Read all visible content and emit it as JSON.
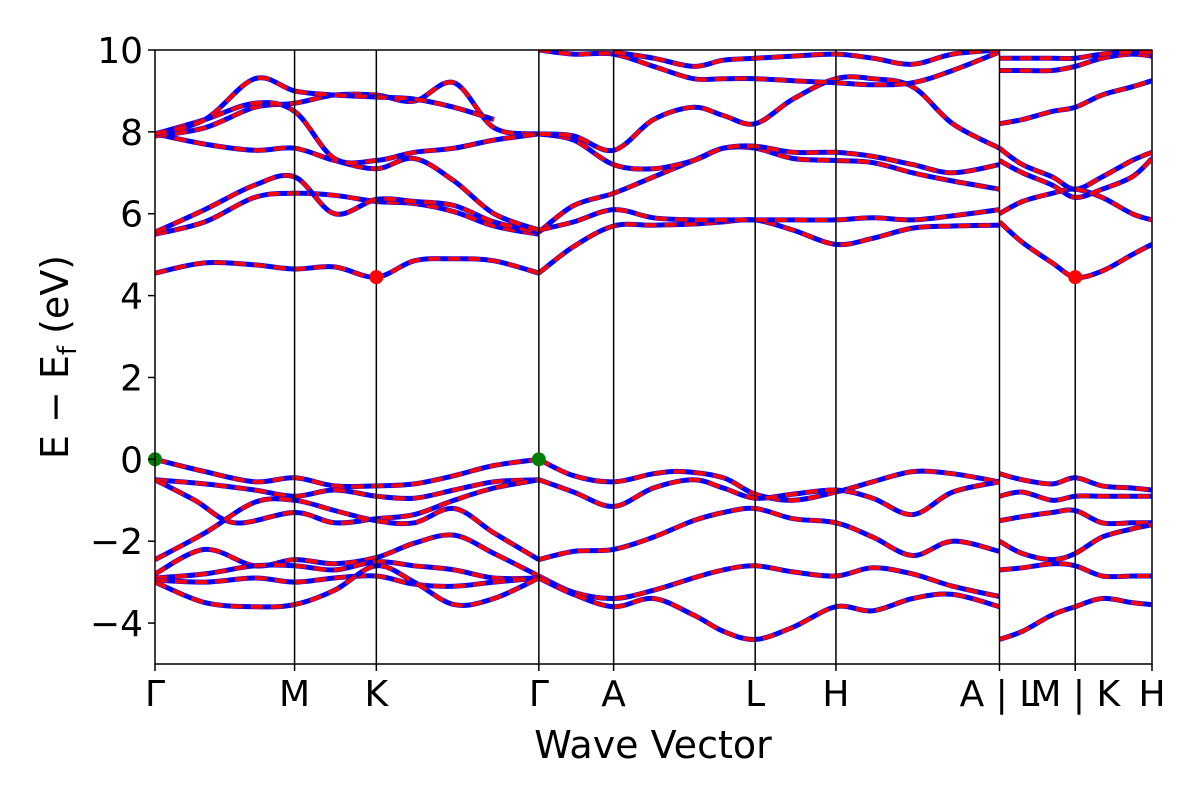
{
  "chart_data": {
    "type": "line",
    "title": "",
    "xlabel": "Wave Vector",
    "ylabel": "E − E",
    "ylabel_sub": "f",
    "ylabel_unit": " (eV)",
    "ylim": [
      -5,
      10
    ],
    "yticks": [
      -4,
      -2,
      0,
      2,
      4,
      6,
      8,
      10
    ],
    "ytick_labels": [
      "−4",
      "−2",
      "0",
      "2",
      "4",
      "6",
      "8",
      "10"
    ],
    "xlim": [
      0,
      1
    ],
    "grid": false,
    "legend": "none",
    "kpoints": [
      {
        "label": "Γ",
        "x": 0.0
      },
      {
        "label": "M",
        "x": 0.14
      },
      {
        "label": "K",
        "x": 0.222
      },
      {
        "label": "Γ",
        "x": 0.385
      },
      {
        "label": "A",
        "x": 0.46
      },
      {
        "label": "L",
        "x": 0.602
      },
      {
        "label": "H",
        "x": 0.683
      },
      {
        "label": "A | L",
        "x": 0.847
      },
      {
        "label": "M | K",
        "x": 0.923
      },
      {
        "label": "H",
        "x": 1.0
      }
    ],
    "colors": {
      "band_primary": "#ff0000",
      "band_overlay": "#0000ff",
      "vbm": "#008000",
      "cbm": "#ff0000"
    },
    "markers": [
      {
        "type": "VBM",
        "x": 0.0,
        "y": 0.0
      },
      {
        "type": "VBM",
        "x": 0.385,
        "y": 0.0
      },
      {
        "type": "CBM",
        "x": 0.222,
        "y": 4.45
      },
      {
        "type": "CBM",
        "x": 0.923,
        "y": 4.45
      }
    ],
    "bands": [
      {
        "x": [
          0,
          0.05,
          0.1,
          0.14,
          0.18,
          0.222,
          0.26,
          0.3,
          0.34,
          0.385
        ],
        "y": [
          0.0,
          -0.3,
          -0.55,
          -0.45,
          -0.65,
          -0.65,
          -0.6,
          -0.4,
          -0.15,
          0.0
        ]
      },
      {
        "x": [
          0.385,
          0.42,
          0.46,
          0.5,
          0.53,
          0.57,
          0.602,
          0.64,
          0.683,
          0.72,
          0.76,
          0.8,
          0.847
        ],
        "y": [
          0.0,
          -0.4,
          -0.55,
          -0.35,
          -0.3,
          -0.45,
          -0.85,
          -1.0,
          -0.8,
          -0.55,
          -0.3,
          -0.35,
          -0.55
        ]
      },
      {
        "x": [
          0,
          0.05,
          0.1,
          0.14,
          0.18,
          0.222,
          0.26,
          0.3,
          0.34,
          0.385
        ],
        "y": [
          -0.5,
          -0.6,
          -0.75,
          -0.9,
          -0.75,
          -0.9,
          -0.95,
          -0.75,
          -0.55,
          -0.5
        ]
      },
      {
        "x": [
          0.385,
          0.42,
          0.46,
          0.5,
          0.54,
          0.57,
          0.602,
          0.64,
          0.683,
          0.72,
          0.76,
          0.8,
          0.847
        ],
        "y": [
          -0.5,
          -0.8,
          -1.15,
          -0.7,
          -0.5,
          -0.7,
          -0.95,
          -0.85,
          -0.75,
          -0.95,
          -1.35,
          -0.8,
          -0.55
        ]
      },
      {
        "x": [
          0,
          0.04,
          0.08,
          0.14,
          0.18,
          0.222,
          0.26,
          0.3,
          0.34,
          0.385
        ],
        "y": [
          -0.5,
          -1.0,
          -1.55,
          -1.3,
          -1.55,
          -1.45,
          -1.35,
          -1.0,
          -0.7,
          -0.5
        ]
      },
      {
        "x": [
          0,
          0.05,
          0.1,
          0.14,
          0.18,
          0.222,
          0.26,
          0.3,
          0.34,
          0.385
        ],
        "y": [
          -2.45,
          -1.8,
          -1.05,
          -1.0,
          -1.25,
          -1.5,
          -1.55,
          -1.2,
          -1.8,
          -2.45
        ]
      },
      {
        "x": [
          0.385,
          0.42,
          0.46,
          0.5,
          0.54,
          0.57,
          0.602,
          0.64,
          0.683,
          0.72,
          0.76,
          0.8,
          0.847
        ],
        "y": [
          -2.45,
          -2.25,
          -2.2,
          -1.9,
          -1.5,
          -1.3,
          -1.2,
          -1.45,
          -1.55,
          -1.9,
          -2.35,
          -2.0,
          -2.25
        ]
      },
      {
        "x": [
          0,
          0.05,
          0.1,
          0.14,
          0.18,
          0.222,
          0.26,
          0.3,
          0.34,
          0.385
        ],
        "y": [
          -2.8,
          -2.2,
          -2.6,
          -2.45,
          -2.55,
          -2.4,
          -2.05,
          -1.85,
          -2.3,
          -2.85
        ]
      },
      {
        "x": [
          0,
          0.05,
          0.1,
          0.14,
          0.18,
          0.222,
          0.26,
          0.3,
          0.34,
          0.385
        ],
        "y": [
          -2.9,
          -2.8,
          -2.6,
          -2.6,
          -2.7,
          -2.5,
          -2.6,
          -2.7,
          -2.9,
          -2.9
        ]
      },
      {
        "x": [
          0,
          0.05,
          0.1,
          0.14,
          0.18,
          0.222,
          0.26,
          0.3,
          0.34,
          0.385
        ],
        "y": [
          -2.95,
          -3.0,
          -2.9,
          -3.0,
          -2.9,
          -2.85,
          -3.05,
          -3.1,
          -3.0,
          -2.9
        ]
      },
      {
        "x": [
          0,
          0.05,
          0.1,
          0.14,
          0.18,
          0.222,
          0.26,
          0.3,
          0.34,
          0.385
        ],
        "y": [
          -3.0,
          -3.5,
          -3.6,
          -3.55,
          -3.2,
          -2.6,
          -3.0,
          -3.55,
          -3.4,
          -2.9
        ]
      },
      {
        "x": [
          0.385,
          0.42,
          0.46,
          0.5,
          0.54,
          0.57,
          0.602,
          0.64,
          0.683,
          0.72,
          0.76,
          0.8,
          0.847
        ],
        "y": [
          -2.85,
          -3.25,
          -3.4,
          -3.2,
          -2.9,
          -2.7,
          -2.6,
          -2.75,
          -2.85,
          -2.65,
          -2.8,
          -3.1,
          -3.35
        ]
      },
      {
        "x": [
          0.385,
          0.42,
          0.46,
          0.5,
          0.54,
          0.57,
          0.602,
          0.64,
          0.683,
          0.72,
          0.76,
          0.8,
          0.847
        ],
        "y": [
          -2.9,
          -3.3,
          -3.6,
          -3.4,
          -3.8,
          -4.2,
          -4.4,
          -4.1,
          -3.6,
          -3.7,
          -3.4,
          -3.3,
          -3.6
        ]
      },
      {
        "x": [
          0.847,
          0.87,
          0.9,
          0.923,
          0.95,
          0.98,
          1.0
        ],
        "y": [
          -4.4,
          -4.2,
          -3.8,
          -3.6,
          -3.4,
          -3.5,
          -3.55
        ]
      },
      {
        "x": [
          0.847,
          0.87,
          0.9,
          0.923,
          0.95,
          0.98,
          1.0
        ],
        "y": [
          -0.35,
          -0.5,
          -0.6,
          -0.45,
          -0.65,
          -0.7,
          -0.75
        ]
      },
      {
        "x": [
          0.847,
          0.87,
          0.9,
          0.923,
          0.95,
          0.98,
          1.0
        ],
        "y": [
          -0.9,
          -0.8,
          -1.0,
          -0.9,
          -0.9,
          -0.9,
          -0.9
        ]
      },
      {
        "x": [
          0.847,
          0.87,
          0.9,
          0.923,
          0.95,
          0.98,
          1.0
        ],
        "y": [
          -1.5,
          -1.4,
          -1.3,
          -1.25,
          -1.55,
          -1.55,
          -1.55
        ]
      },
      {
        "x": [
          0.847,
          0.87,
          0.9,
          0.923,
          0.95,
          0.98,
          1.0
        ],
        "y": [
          -2.0,
          -2.3,
          -2.45,
          -2.3,
          -1.9,
          -1.7,
          -1.6
        ]
      },
      {
        "x": [
          0.847,
          0.87,
          0.9,
          0.923,
          0.95,
          0.98,
          1.0
        ],
        "y": [
          -2.7,
          -2.65,
          -2.55,
          -2.6,
          -2.85,
          -2.85,
          -2.85
        ]
      },
      {
        "x": [
          0,
          0.05,
          0.1,
          0.14,
          0.18,
          0.222,
          0.26,
          0.3,
          0.34,
          0.385
        ],
        "y": [
          4.55,
          4.8,
          4.75,
          4.65,
          4.7,
          4.45,
          4.85,
          4.9,
          4.85,
          4.55
        ]
      },
      {
        "x": [
          0.385,
          0.42,
          0.46,
          0.5,
          0.54,
          0.57,
          0.602,
          0.64,
          0.683,
          0.72,
          0.76,
          0.8,
          0.847
        ],
        "y": [
          4.55,
          5.2,
          5.7,
          5.72,
          5.75,
          5.8,
          5.85,
          5.6,
          5.25,
          5.4,
          5.65,
          5.7,
          5.72
        ]
      },
      {
        "x": [
          0.847,
          0.87,
          0.9,
          0.923,
          0.95,
          0.98,
          1.0
        ],
        "y": [
          5.8,
          5.3,
          4.8,
          4.45,
          4.6,
          5.0,
          5.25
        ]
      },
      {
        "x": [
          0,
          0.05,
          0.1,
          0.14,
          0.18,
          0.222,
          0.26,
          0.3,
          0.34,
          0.385
        ],
        "y": [
          5.5,
          5.8,
          6.4,
          6.5,
          6.45,
          6.3,
          6.25,
          6.05,
          5.7,
          5.5
        ]
      },
      {
        "x": [
          0,
          0.05,
          0.1,
          0.14,
          0.18,
          0.222,
          0.26,
          0.3,
          0.34,
          0.385
        ],
        "y": [
          5.55,
          6.1,
          6.7,
          6.9,
          6.0,
          6.35,
          6.3,
          6.2,
          5.8,
          5.55
        ]
      },
      {
        "x": [
          0.385,
          0.42,
          0.46,
          0.5,
          0.54,
          0.57,
          0.602,
          0.64,
          0.683,
          0.72,
          0.76,
          0.8,
          0.847
        ],
        "y": [
          5.55,
          6.2,
          6.5,
          6.9,
          7.3,
          7.6,
          7.6,
          7.35,
          7.3,
          7.25,
          7.0,
          6.8,
          6.6
        ]
      },
      {
        "x": [
          0.385,
          0.42,
          0.46,
          0.5,
          0.54,
          0.57,
          0.602,
          0.64,
          0.683,
          0.72,
          0.76,
          0.8,
          0.847
        ],
        "y": [
          5.6,
          5.8,
          6.1,
          5.9,
          5.85,
          5.85,
          5.85,
          5.85,
          5.85,
          5.9,
          5.85,
          5.95,
          6.1
        ]
      },
      {
        "x": [
          0,
          0.05,
          0.1,
          0.14,
          0.18,
          0.222,
          0.26,
          0.3,
          0.34,
          0.385
        ],
        "y": [
          7.95,
          7.7,
          7.55,
          7.6,
          7.3,
          7.1,
          7.35,
          6.8,
          6.0,
          5.6
        ]
      },
      {
        "x": [
          0,
          0.05,
          0.1,
          0.14,
          0.18,
          0.222,
          0.26,
          0.3,
          0.34,
          0.385
        ],
        "y": [
          7.9,
          8.1,
          8.6,
          8.7,
          8.9,
          8.9,
          8.75,
          9.2,
          8.1,
          7.95
        ]
      },
      {
        "x": [
          0,
          0.05,
          0.1,
          0.14,
          0.18,
          0.222,
          0.26,
          0.3,
          0.34,
          0.385
        ],
        "y": [
          7.95,
          8.3,
          8.7,
          8.5,
          7.35,
          7.3,
          7.5,
          7.6,
          7.8,
          7.95
        ]
      },
      {
        "x": [
          0.385,
          0.42,
          0.46,
          0.5,
          0.54,
          0.57,
          0.602,
          0.64,
          0.683,
          0.72,
          0.76,
          0.8,
          0.847
        ],
        "y": [
          7.95,
          7.8,
          7.2,
          7.1,
          7.3,
          7.6,
          7.65,
          7.5,
          7.5,
          7.4,
          7.2,
          7.0,
          7.2
        ]
      },
      {
        "x": [
          0.385,
          0.42,
          0.46,
          0.5,
          0.54,
          0.57,
          0.602,
          0.64,
          0.683,
          0.72,
          0.76,
          0.8,
          0.847
        ],
        "y": [
          7.95,
          7.9,
          7.55,
          8.3,
          8.6,
          8.4,
          8.2,
          8.8,
          9.3,
          9.3,
          9.1,
          8.2,
          7.6
        ]
      },
      {
        "x": [
          0.385,
          0.42,
          0.46,
          0.5,
          0.54,
          0.57,
          0.602,
          0.64,
          0.683,
          0.72,
          0.76,
          0.8,
          0.847
        ],
        "y": [
          10.0,
          9.9,
          9.9,
          9.6,
          9.3,
          9.3,
          9.3,
          9.25,
          9.2,
          9.15,
          9.2,
          9.5,
          9.95
        ]
      },
      {
        "x": [
          0.46,
          0.5,
          0.54,
          0.57,
          0.602,
          0.64,
          0.683,
          0.72,
          0.76,
          0.8,
          0.847
        ],
        "y": [
          9.95,
          9.8,
          9.6,
          9.75,
          9.8,
          9.85,
          9.9,
          9.8,
          9.65,
          9.9,
          10.0
        ]
      },
      {
        "x": [
          0,
          0.05,
          0.1,
          0.14,
          0.18,
          0.222,
          0.26,
          0.3,
          0.34
        ],
        "y": [
          7.95,
          8.3,
          9.3,
          9.0,
          8.9,
          8.85,
          8.8,
          8.6,
          8.3
        ]
      },
      {
        "x": [
          0.847,
          0.87,
          0.9,
          0.923,
          0.95,
          0.98,
          1.0
        ],
        "y": [
          7.6,
          7.2,
          6.9,
          6.6,
          6.9,
          7.3,
          7.5
        ]
      },
      {
        "x": [
          0.847,
          0.87,
          0.9,
          0.923,
          0.95,
          0.98,
          1.0
        ],
        "y": [
          8.2,
          8.3,
          8.5,
          8.6,
          8.9,
          9.1,
          9.25
        ]
      },
      {
        "x": [
          0.847,
          0.87,
          0.9,
          0.923,
          0.95,
          0.98,
          1.0
        ],
        "y": [
          9.5,
          9.5,
          9.5,
          9.6,
          9.8,
          9.9,
          9.85
        ]
      },
      {
        "x": [
          0.847,
          0.87,
          0.9,
          0.923,
          0.95,
          0.98,
          1.0
        ],
        "y": [
          9.8,
          9.8,
          9.8,
          9.8,
          9.9,
          9.95,
          9.95
        ]
      },
      {
        "x": [
          0.847,
          0.87,
          0.9,
          0.923,
          0.95,
          0.98,
          1.0
        ],
        "y": [
          6.0,
          6.3,
          6.5,
          6.6,
          6.4,
          6.0,
          5.85
        ]
      },
      {
        "x": [
          0.847,
          0.87,
          0.9,
          0.923,
          0.95,
          0.98,
          1.0
        ],
        "y": [
          7.3,
          7.0,
          6.7,
          6.4,
          6.6,
          6.9,
          7.35
        ]
      }
    ]
  }
}
